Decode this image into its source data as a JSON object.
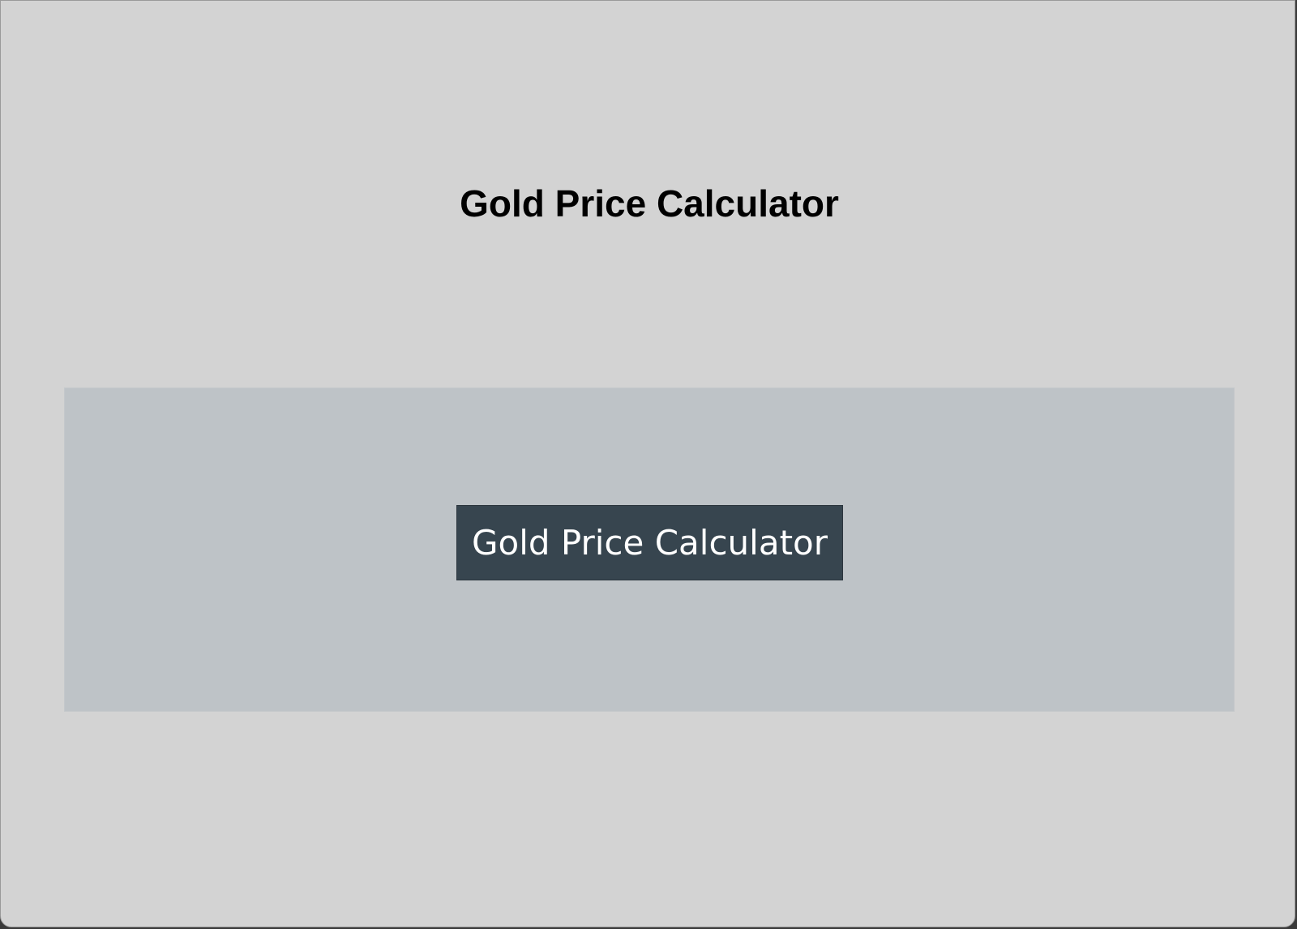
{
  "header": {
    "title": "Gold Price Calculator"
  },
  "main": {
    "button_label": "Gold Price Calculator"
  },
  "colors": {
    "window_background": "#d3d3d3",
    "panel_background": "#bec3c7",
    "button_background": "#37454f",
    "button_text": "#ffffff",
    "title_text": "#000000"
  }
}
